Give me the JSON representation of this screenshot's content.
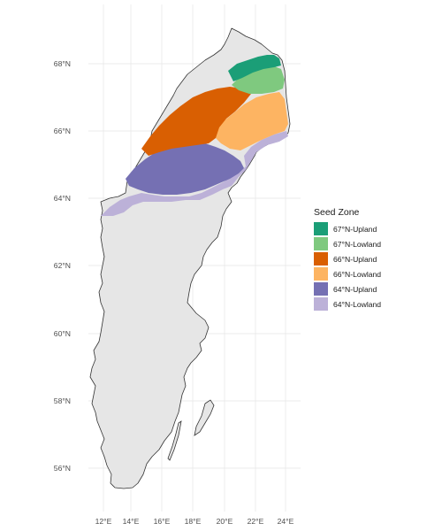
{
  "chart_data": {
    "type": "map",
    "title": "",
    "xlabel": "",
    "ylabel": "",
    "background": "#ffffff",
    "land_fill": "#e6e6e6",
    "land_outline": "#333333",
    "grid": true,
    "x_ticks": [
      "12°E",
      "14°E",
      "16°E",
      "18°E",
      "20°E",
      "22°E",
      "24°E"
    ],
    "y_ticks": [
      "56°N",
      "58°N",
      "60°N",
      "62°N",
      "64°N",
      "66°N",
      "68°N"
    ],
    "legend": {
      "title": "Seed Zone",
      "position": "right",
      "entries": [
        {
          "label": "67°N-Upland",
          "color": "#1b9e77"
        },
        {
          "label": "67°N-Lowland",
          "color": "#7fc97f"
        },
        {
          "label": "66°N-Upland",
          "color": "#d95f02"
        },
        {
          "label": "66°N-Lowland",
          "color": "#fdb462"
        },
        {
          "label": "64°N-Upland",
          "color": "#7570b3"
        },
        {
          "label": "64°N-Lowland",
          "color": "#bcb1d8"
        }
      ]
    }
  }
}
